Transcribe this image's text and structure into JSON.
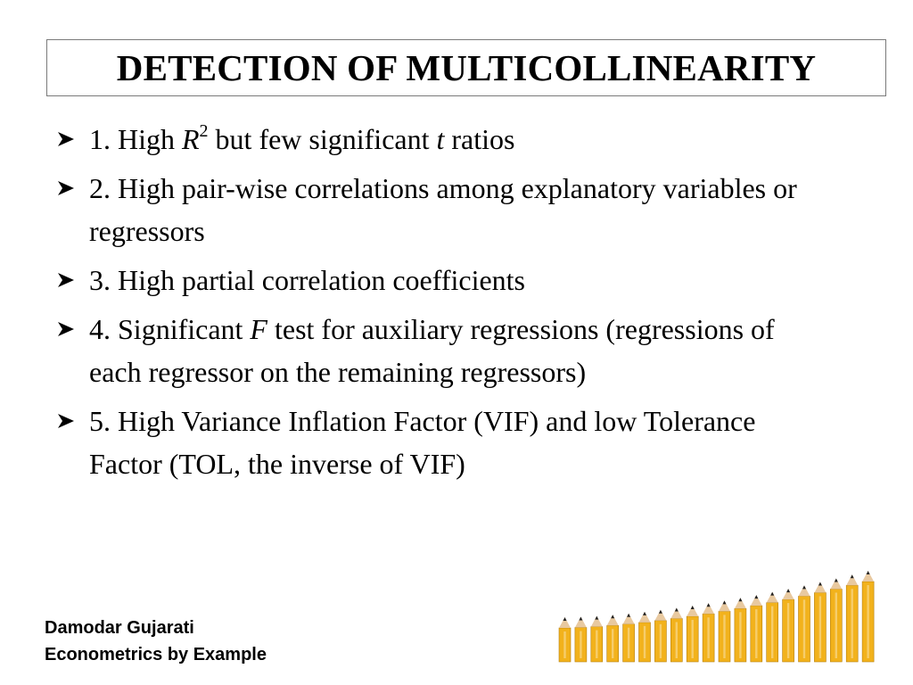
{
  "slide": {
    "title": "DETECTION OF MULTICOLLINEARITY"
  },
  "bullets": [
    {
      "prefix": "1. High ",
      "var": "R",
      "sup": "2",
      "mid": " but few significant ",
      "var2": "t",
      "suffix": " ratios"
    },
    {
      "text": "2. High pair-wise correlations among explanatory variables or regressors"
    },
    {
      "text": "3. High partial correlation coefficients"
    },
    {
      "prefix": "4. Significant ",
      "var": "F",
      "suffix": " test for auxiliary regressions (regressions of each regressor on the remaining regressors)"
    },
    {
      "text": "5. High Variance Inflation Factor (VIF) and low Tolerance Factor (TOL, the inverse of VIF)"
    }
  ],
  "footer": {
    "author": "Damodar Gujarati",
    "book": "Econometrics by Example"
  },
  "graphic": {
    "icon": "pencils-growth-chart-icon",
    "pencil_color": "#f2b21c",
    "tip_color": "#e8c9a0",
    "lead_color": "#222222"
  }
}
